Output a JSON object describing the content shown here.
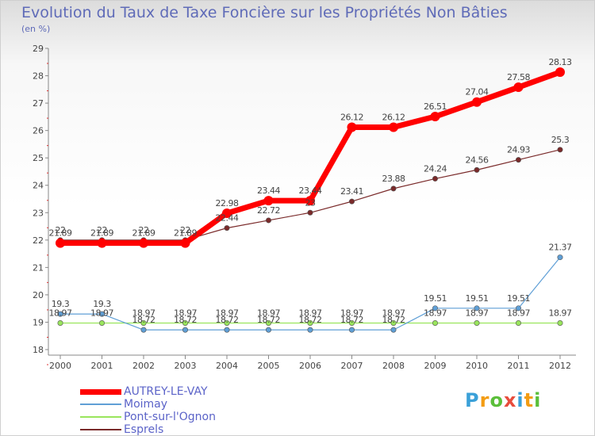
{
  "chart_data": {
    "type": "line",
    "title": "Evolution du Taux de Taxe Foncière sur les Propriétés Non Bâties",
    "subtitle": "(en %)",
    "xlabel": "",
    "ylabel": "",
    "ylim": [
      18,
      29
    ],
    "yticks": [
      "18",
      "19",
      "20",
      "21",
      "22",
      "23",
      "24",
      "25",
      "26",
      "27",
      "28",
      "29"
    ],
    "categories": [
      "2000",
      "2001",
      "2002",
      "2003",
      "2004",
      "2005",
      "2006",
      "2007",
      "2008",
      "2009",
      "2010",
      "2011",
      "2012"
    ],
    "grid": false,
    "legend_position": "bottom-left",
    "series": [
      {
        "name": "AUTREY-LE-VAY",
        "color": "#ff0000",
        "values": [
          21.89,
          21.89,
          21.89,
          21.89,
          22.98,
          23.44,
          23.44,
          26.12,
          26.12,
          26.51,
          27.04,
          27.58,
          28.13
        ],
        "labels": [
          "21.89",
          "21.89",
          "21.89",
          "21.89",
          "22.98",
          "23.44",
          "23.44",
          "26.12",
          "26.12",
          "26.51",
          "27.04",
          "27.58",
          "28.13"
        ]
      },
      {
        "name": "Moimay",
        "color": "#5f9fd6",
        "values": [
          19.3,
          19.3,
          18.72,
          18.72,
          18.72,
          18.72,
          18.72,
          18.72,
          18.72,
          19.51,
          19.51,
          19.51,
          21.37
        ],
        "labels": [
          "19.3",
          "19.3",
          "18.72",
          "18.72",
          "18.72",
          "18.72",
          "18.72",
          "18.72",
          "18.72",
          "19.51",
          "19.51",
          "19.51",
          "21.37"
        ]
      },
      {
        "name": "Pont-sur-l'Ognon",
        "color": "#99e55c",
        "values": [
          18.97,
          18.97,
          18.97,
          18.97,
          18.97,
          18.97,
          18.97,
          18.97,
          18.97,
          18.97,
          18.97,
          18.97,
          18.97
        ],
        "labels": [
          "18.97",
          "18.97",
          "18.97",
          "18.97",
          "18.97",
          "18.97",
          "18.97",
          "18.97",
          "18.97",
          "18.97",
          "18.97",
          "18.97",
          "18.97"
        ]
      },
      {
        "name": "Esprels",
        "color": "#7a2a2a",
        "values": [
          22,
          22,
          22,
          22,
          22.44,
          22.72,
          23,
          23.41,
          23.88,
          24.24,
          24.56,
          24.93,
          25.3
        ],
        "labels": [
          "22",
          "22",
          "22",
          "22",
          "22.44",
          "22.72",
          "23",
          "23.41",
          "23.88",
          "24.24",
          "24.56",
          "24.93",
          "25.3"
        ]
      }
    ]
  },
  "brand": {
    "logo_letters": [
      "P",
      "r",
      "o",
      "x",
      "i",
      "t",
      "i"
    ],
    "logo_colors": [
      "#3aa0d8",
      "#f39c12",
      "#5bbf3a",
      "#e74c3c",
      "#3aa0d8",
      "#f39c12",
      "#5bbf3a"
    ]
  }
}
